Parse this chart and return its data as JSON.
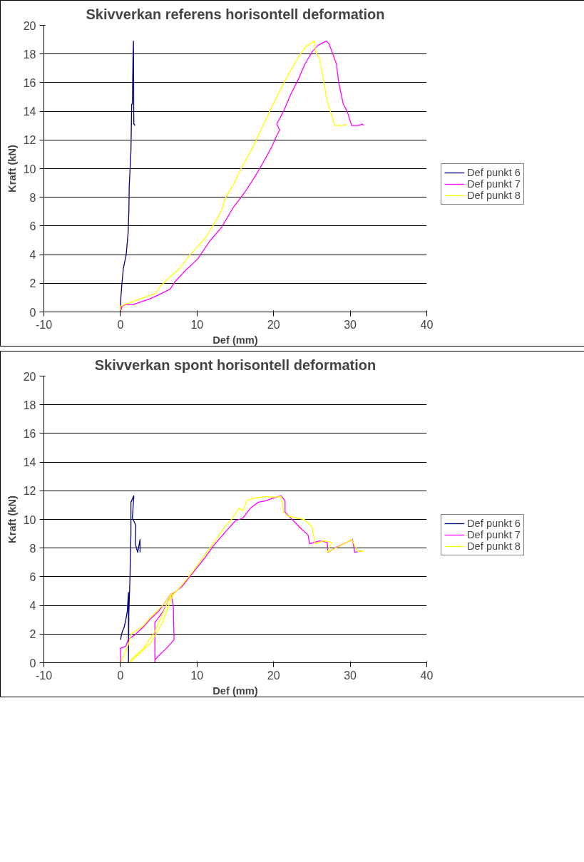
{
  "chart_data": [
    {
      "type": "line",
      "title": "Skivverkan referens horisontell deformation",
      "xlabel": "Def (mm)",
      "ylabel": "Kraft (kN)",
      "xlim": [
        -10,
        40
      ],
      "xticks": [
        -10,
        0,
        10,
        20,
        30,
        40
      ],
      "ylim": [
        0,
        20
      ],
      "yticks": [
        0,
        2,
        4,
        6,
        8,
        10,
        12,
        14,
        16,
        18,
        20
      ],
      "grid": "y",
      "legend": "right",
      "series": [
        {
          "name": "Def punkt 6",
          "color": "#000080",
          "x": [
            0,
            0.05,
            0.2,
            0.37,
            0.75,
            1.0,
            1.1,
            1.15,
            1.37,
            1.47,
            1.55,
            1.65,
            1.7,
            1.75,
            1.8,
            1.9
          ],
          "values": [
            0,
            1.0,
            2.0,
            3.0,
            4.0,
            5.5,
            7.0,
            8.8,
            11.2,
            14.5,
            14.5,
            18.0,
            18.9,
            13.1,
            13.1,
            13.0
          ]
        },
        {
          "name": "Def punkt 7",
          "color": "#ff00ff",
          "x": [
            0,
            0.2,
            0.7,
            1.6,
            3.8,
            5.4,
            6.5,
            7.1,
            8.5,
            10.1,
            11.6,
            13.2,
            14.75,
            16.3,
            17.4,
            18.5,
            19.75,
            20.4,
            20.8,
            20.4,
            21.3,
            22.25,
            23.2,
            24.1,
            25.1,
            25.8,
            26.5,
            26.9,
            27.25,
            28.2,
            28.5,
            29.1,
            29.6,
            30.2,
            31.0,
            31.6,
            31.75
          ],
          "values": [
            0,
            0.4,
            0.5,
            0.5,
            0.9,
            1.3,
            1.6,
            2.1,
            2.9,
            3.7,
            4.9,
            5.9,
            7.3,
            8.4,
            9.3,
            10.3,
            11.5,
            12.3,
            12.7,
            13.1,
            14.0,
            15.2,
            16.2,
            17.3,
            18.2,
            18.6,
            18.8,
            18.9,
            18.7,
            17.3,
            16.0,
            14.5,
            14.0,
            13.0,
            13.0,
            13.1,
            13.0
          ]
        },
        {
          "name": "Def punkt 8",
          "color": "#ffff00",
          "x": [
            0,
            0,
            0.5,
            2.0,
            3.6,
            4.6,
            5.2,
            6.2,
            7.8,
            9.1,
            11.0,
            12.2,
            13.2,
            13.75,
            14.75,
            15.75,
            17.0,
            18.0,
            19.4,
            20.6,
            21.75,
            23.25,
            24.2,
            25.0,
            25.3,
            25.5,
            26.0,
            27.0,
            28.0,
            29.0,
            29.6
          ],
          "values": [
            0,
            0.4,
            0.5,
            0.8,
            1.1,
            1.3,
            1.8,
            2.3,
            3.1,
            4.0,
            5.1,
            6.1,
            7.1,
            8.0,
            8.9,
            10.0,
            11.2,
            12.3,
            13.9,
            15.2,
            16.4,
            17.8,
            18.5,
            18.8,
            18.9,
            18.1,
            17.7,
            14.7,
            13.0,
            13.0,
            13.1
          ]
        }
      ]
    },
    {
      "type": "line",
      "title": "Skivverkan spont horisontell deformation",
      "xlabel": "Def (mm)",
      "ylabel": "Kraft (kN)",
      "xlim": [
        -10,
        40
      ],
      "xticks": [
        -10,
        0,
        10,
        20,
        30,
        40
      ],
      "ylim": [
        0,
        20
      ],
      "yticks": [
        0,
        2,
        4,
        6,
        8,
        10,
        12,
        14,
        16,
        18,
        20
      ],
      "grid": "y",
      "legend": "right",
      "series": [
        {
          "name": "Def punkt 6",
          "color": "#000080",
          "x": [
            0,
            0.2,
            0.5,
            0.7,
            0.9,
            1.05,
            1.05,
            1.1,
            1.25,
            1.37,
            1.37,
            1.75,
            1.56,
            2.0,
            1.94,
            2.25,
            2.56,
            2.56
          ],
          "values": [
            1.6,
            2.1,
            2.5,
            3.0,
            3.6,
            4.9,
            0,
            3.5,
            6.0,
            9.0,
            11.2,
            11.65,
            10.1,
            9.6,
            8.3,
            7.7,
            8.6,
            7.7
          ]
        },
        {
          "name": "Def punkt 7",
          "color": "#ff00ff",
          "x": [
            0,
            0,
            0.7,
            1.0,
            2.0,
            3.0,
            4.0,
            5.0,
            6.6,
            6.9,
            7.0,
            6.0,
            5.0,
            4.5,
            4.5,
            4.5,
            5.6,
            6.6,
            8.0,
            9.2,
            11.0,
            12.2,
            13.5,
            15.0,
            16.0,
            17.0,
            18.0,
            19.0,
            20.0,
            21.0,
            21.5,
            21.5,
            23.5,
            24.5,
            24.7,
            26.0,
            27.0,
            27.1,
            28.0,
            30.3,
            30.6,
            31.5
          ],
          "values": [
            0,
            1.0,
            1.15,
            1.6,
            2.0,
            2.5,
            3.1,
            3.6,
            4.8,
            4.0,
            1.6,
            1.0,
            0.5,
            0.2,
            0,
            2.8,
            3.6,
            4.7,
            5.3,
            6.1,
            7.3,
            8.2,
            9.0,
            9.9,
            10.1,
            10.8,
            11.2,
            11.3,
            11.5,
            11.65,
            11.3,
            10.5,
            9.4,
            8.9,
            8.3,
            8.5,
            8.4,
            7.7,
            8.0,
            8.6,
            7.7,
            7.8
          ]
        },
        {
          "name": "Def punkt 8",
          "color": "#ffff00",
          "x": [
            0,
            1.0,
            1.4,
            2.0,
            3.0,
            4.0,
            5.5,
            6.8,
            6.0,
            4.5,
            3.0,
            1.5,
            1.2,
            2.0,
            4.0,
            5.5,
            6.8,
            8.0,
            9.5,
            11.0,
            12.5,
            13.5,
            14.5,
            15.5,
            16.0,
            16.5,
            17.5,
            19.0,
            20.0,
            21.0,
            21.3,
            22.0,
            24.0,
            25.0,
            25.4,
            26.5,
            27.6,
            27.0,
            28.5,
            30.2,
            31.0,
            31.8
          ],
          "values": [
            0,
            1.2,
            2.0,
            2.2,
            2.6,
            3.2,
            4.0,
            4.9,
            4.0,
            2.2,
            1.0,
            0.3,
            0,
            0.4,
            1.4,
            2.8,
            4.7,
            5.4,
            6.4,
            7.5,
            8.6,
            9.4,
            10.0,
            10.8,
            10.6,
            11.3,
            11.5,
            11.6,
            11.55,
            11.6,
            10.5,
            10.2,
            10.0,
            9.5,
            8.3,
            8.5,
            8.4,
            7.7,
            8.1,
            8.6,
            7.75,
            7.8
          ]
        }
      ]
    }
  ]
}
